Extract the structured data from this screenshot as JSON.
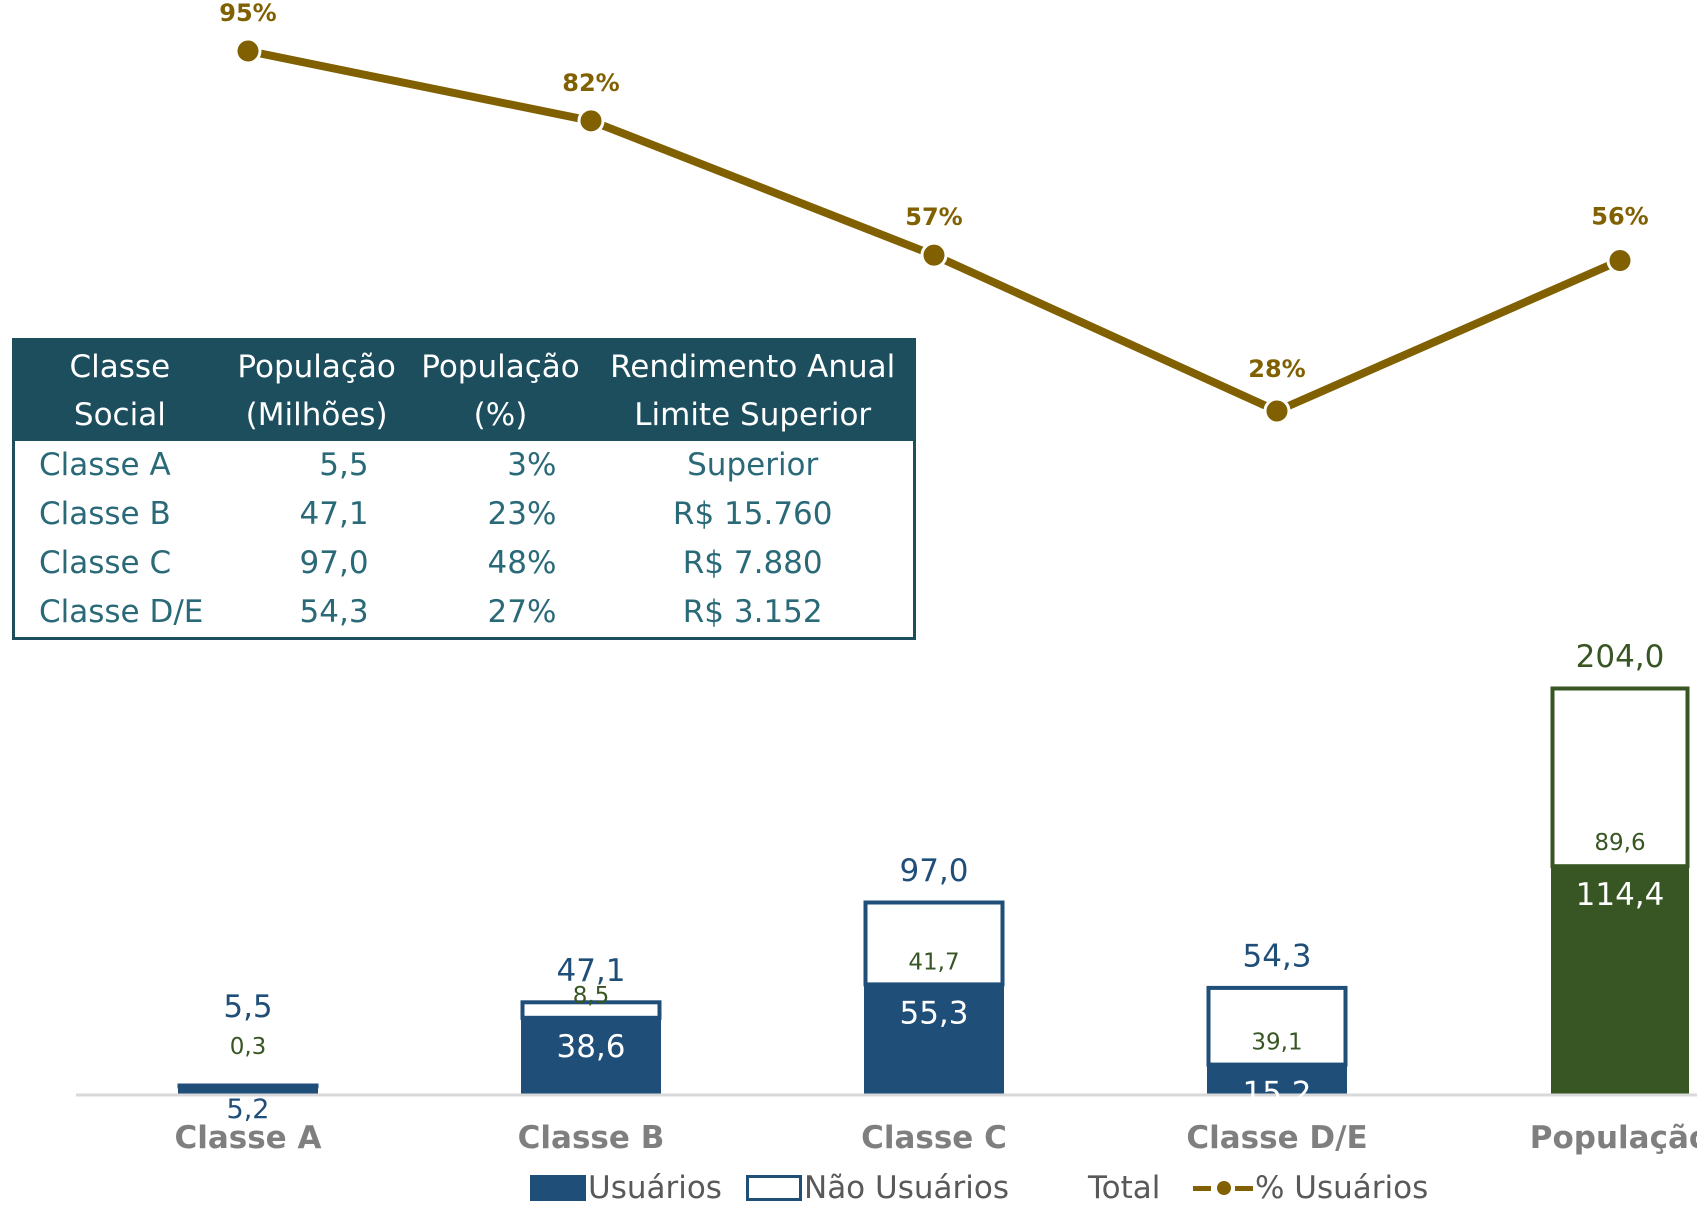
{
  "colors": {
    "usuarios": "#1f4e79",
    "nao_usuarios_outline": "#1f4e79",
    "populacao": "#375623",
    "populacao_outline": "#375623",
    "line": "#806000",
    "nao_usuarios_label": "#375623",
    "axis": "#d9d9d9",
    "category_label": "#7f7f7f",
    "table_header_bg": "#1c4e5e",
    "table_text": "#2a6a78"
  },
  "chart_data": {
    "type": "bar",
    "stacked": true,
    "categories": [
      "Classe A",
      "Classe B",
      "Classe C",
      "Classe D/E",
      "População"
    ],
    "series": [
      {
        "name": "Usuários",
        "values": [
          5.2,
          38.6,
          55.3,
          15.2,
          114.4
        ],
        "labels": [
          "5,2",
          "38,6",
          "55,3",
          "15,2",
          "114,4"
        ]
      },
      {
        "name": "Não Usuários",
        "values": [
          0.3,
          8.5,
          41.7,
          39.1,
          89.6
        ],
        "labels": [
          "0,3",
          "8,5",
          "41,7",
          "39,1",
          "89,6"
        ]
      },
      {
        "name": "Total",
        "values": [
          5.5,
          47.1,
          97.0,
          54.3,
          204.0
        ],
        "labels": [
          "5,5",
          "47,1",
          "97,0",
          "54,3",
          "204,0"
        ]
      }
    ],
    "line_series": {
      "name": "% Usuários",
      "values": [
        95,
        82,
        57,
        28,
        56
      ],
      "labels": [
        "95%",
        "82%",
        "57%",
        "28%",
        "56%"
      ],
      "ylim": [
        0,
        100
      ]
    },
    "ylim": [
      0,
      230
    ],
    "legend_position": "bottom",
    "grid": false
  },
  "table": {
    "headers": [
      [
        "Classe",
        "Social"
      ],
      [
        "População",
        "(Milhões)"
      ],
      [
        "População",
        "(%)"
      ],
      [
        "Rendimento Anual",
        "Limite Superior"
      ]
    ],
    "rows": [
      [
        "Classe A",
        "5,5",
        "3%",
        "Superior"
      ],
      [
        "Classe B",
        "47,1",
        "23%",
        "R$ 15.760"
      ],
      [
        "Classe C",
        "97,0",
        "48%",
        "R$ 7.880"
      ],
      [
        "Classe D/E",
        "54,3",
        "27%",
        "R$ 3.152"
      ]
    ]
  },
  "legend": {
    "usuarios": "Usuários",
    "nao_usuarios": "Não Usuários",
    "total": "Total",
    "pct_usuarios": "% Usuários"
  }
}
